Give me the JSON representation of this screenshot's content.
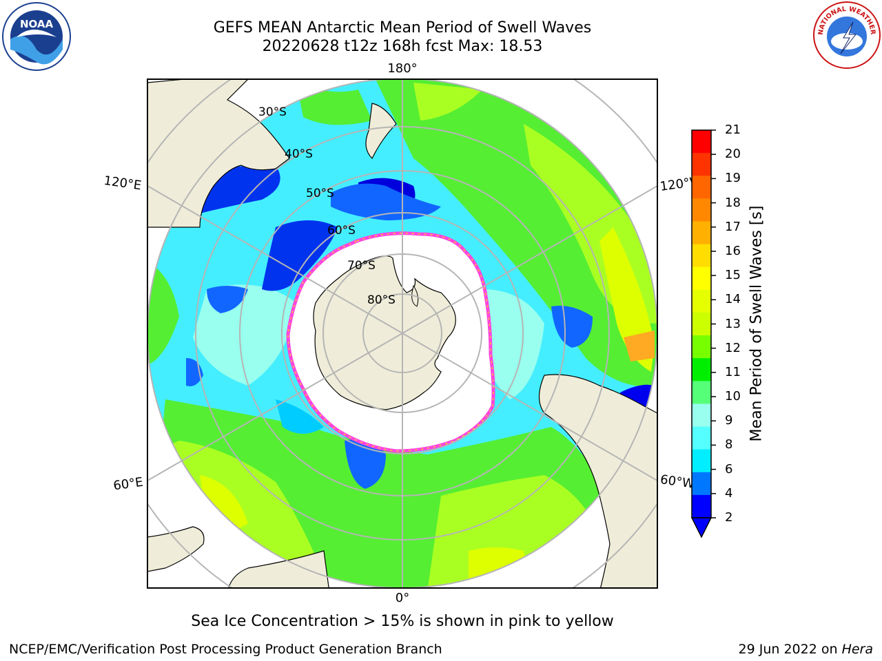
{
  "header": {
    "title_line1": "GEFS MEAN Antarctic Mean Period of Swell Waves",
    "title_line2": "20220628 t12z 168h fcst   Max: 18.53"
  },
  "logos": {
    "left": {
      "icon": "noaa-logo-icon",
      "text": "NOAA"
    },
    "right": {
      "icon": "nws-logo-icon",
      "text": "NATIONAL WEATHER SERVICE"
    }
  },
  "map": {
    "projection": "south-polar-stereographic",
    "longitude_labels": {
      "top": "180°",
      "bottom": "0°",
      "left_upper": "120°E",
      "left_lower": "60°E",
      "right_upper": "120°W",
      "right_lower": "60°W"
    },
    "latitude_labels": [
      "30°S",
      "40°S",
      "50°S",
      "60°S",
      "70°S",
      "80°S"
    ],
    "colors": {
      "land": "#efedd9",
      "ice": "#ffffff",
      "grid": "#b5b5b5",
      "ice_edge": "#ff44dd"
    }
  },
  "colorbar": {
    "label": "Mean Period of Swell Waves [s]",
    "ticks": [
      "21",
      "20",
      "19",
      "18",
      "17",
      "16",
      "15",
      "14",
      "13",
      "12",
      "11",
      "10",
      "9",
      "8",
      "6",
      "4",
      "2"
    ],
    "colors": [
      "#ff0000",
      "#ff3300",
      "#ff6600",
      "#ff8800",
      "#ffb000",
      "#ffdd00",
      "#ffff00",
      "#e5ff00",
      "#ccff00",
      "#77ff00",
      "#00ee00",
      "#55ff77",
      "#99ffee",
      "#55ffff",
      "#00eeff",
      "#0077ff",
      "#0000ff"
    ]
  },
  "caption": "Sea Ice Concentration > 15% is shown in pink to yellow",
  "footer": {
    "left": "NCEP/EMC/Verification Post Processing Product Generation Branch",
    "right_date": "29 Jun 2022 on ",
    "right_host": "Hera"
  }
}
